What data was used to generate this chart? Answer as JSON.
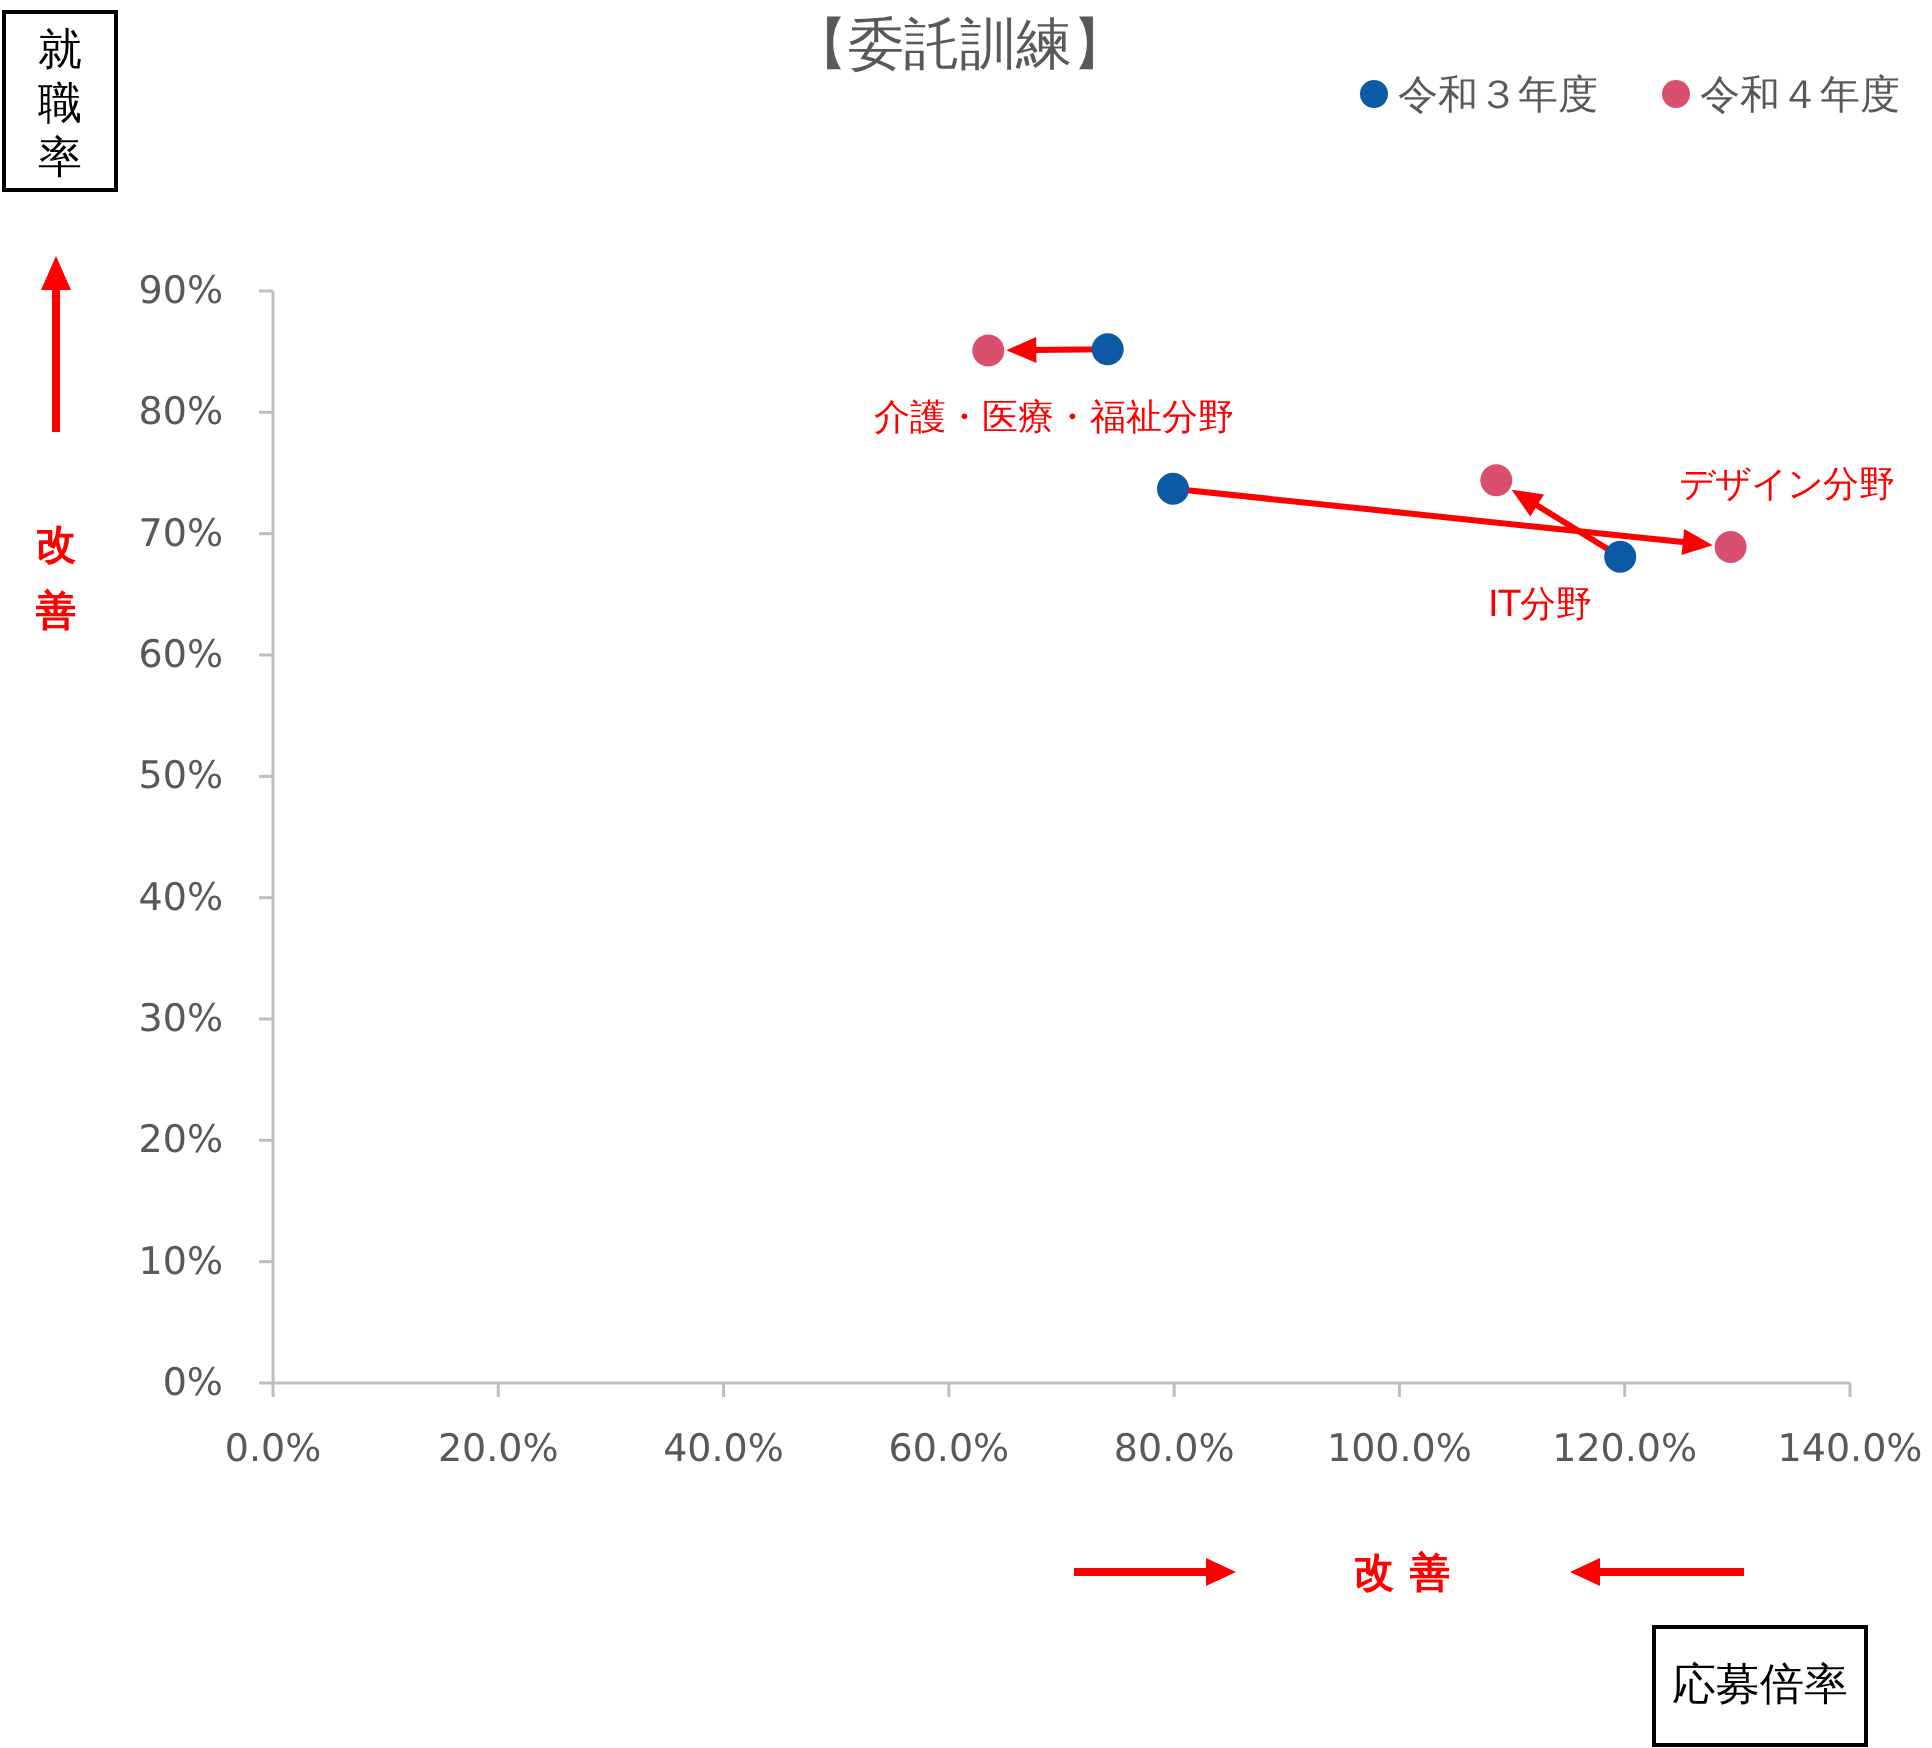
{
  "chart_data": {
    "type": "scatter",
    "title": "【委託訓練】",
    "xlabel": "応募倍率",
    "ylabel": "就職率",
    "series": [
      {
        "name": "令和３年度",
        "color": "#0c5aa6",
        "x": [
          74.1,
          79.9,
          119.6
        ],
        "values": [
          85.2,
          73.7,
          68.1
        ]
      },
      {
        "name": "令和４年度",
        "color": "#d9506e",
        "x": [
          63.5,
          129.4,
          108.6
        ],
        "values": [
          85.1,
          68.9,
          74.4
        ]
      }
    ],
    "xlim": [
      0,
      140
    ],
    "ylim": [
      0,
      90
    ],
    "xticks": [
      {
        "value": 0,
        "label": "0.0%"
      },
      {
        "value": 20,
        "label": "20.0%"
      },
      {
        "value": 40,
        "label": "40.0%"
      },
      {
        "value": 60,
        "label": "60.0%"
      },
      {
        "value": 80,
        "label": "80.0%"
      },
      {
        "value": 100,
        "label": "100.0%"
      },
      {
        "value": 120,
        "label": "120.0%"
      },
      {
        "value": 140,
        "label": "140.0%"
      }
    ],
    "yticks": [
      {
        "value": 0,
        "label": "0%"
      },
      {
        "value": 10,
        "label": "10%"
      },
      {
        "value": 20,
        "label": "20%"
      },
      {
        "value": 30,
        "label": "30%"
      },
      {
        "value": 40,
        "label": "40%"
      },
      {
        "value": 50,
        "label": "50%"
      },
      {
        "value": 60,
        "label": "60%"
      },
      {
        "value": 70,
        "label": "70%"
      },
      {
        "value": 80,
        "label": "80%"
      },
      {
        "value": 90,
        "label": "90%"
      }
    ],
    "annotations": [
      {
        "text": "介護・医療・福祉分野",
        "x": 63.5,
        "y": 85.1
      },
      {
        "text": "デザイン分野",
        "x": 129.4,
        "y": 68.9
      },
      {
        "text": "IT分野",
        "x": 119.6,
        "y": 68.1
      },
      "改善",
      "改善"
    ],
    "legend": "top right",
    "marker": "circle"
  }
}
